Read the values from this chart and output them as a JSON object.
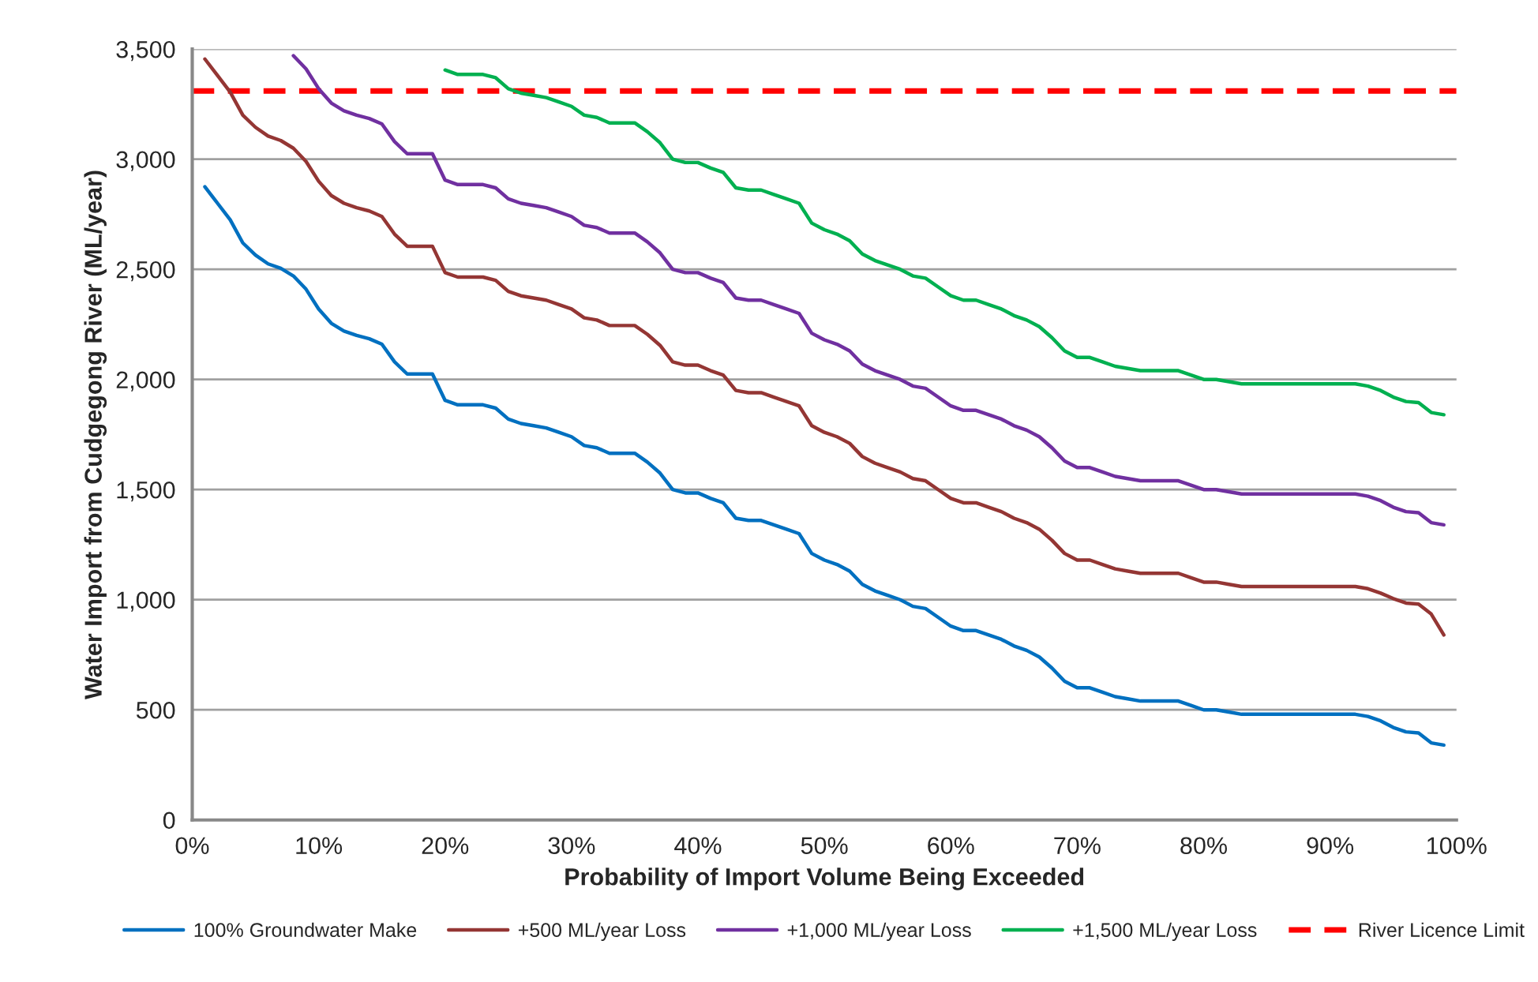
{
  "chart_data": {
    "type": "line",
    "xlabel": "Probability of Import Volume Being Exceeded",
    "ylabel": "Water Import from Cudgegong River (ML/year)",
    "x": [
      1,
      2,
      3,
      4,
      5,
      6,
      7,
      8,
      9,
      10,
      11,
      12,
      13,
      14,
      15,
      16,
      17,
      18,
      19,
      20,
      21,
      22,
      23,
      24,
      25,
      26,
      27,
      28,
      29,
      30,
      31,
      32,
      33,
      34,
      35,
      36,
      37,
      38,
      39,
      40,
      41,
      42,
      43,
      44,
      45,
      46,
      47,
      48,
      49,
      50,
      51,
      52,
      53,
      54,
      55,
      56,
      57,
      58,
      59,
      60,
      61,
      62,
      63,
      64,
      65,
      66,
      67,
      68,
      69,
      70,
      71,
      72,
      73,
      74,
      75,
      76,
      77,
      78,
      79,
      80,
      81,
      82,
      83,
      84,
      85,
      86,
      87,
      88,
      89,
      90,
      91,
      92,
      93,
      94,
      95,
      96,
      97,
      98,
      99
    ],
    "series": [
      {
        "name": "100% Groundwater Make",
        "color": "#0070c0",
        "values": [
          2875,
          2800,
          2725,
          2620,
          2565,
          2525,
          2505,
          2470,
          2410,
          2320,
          2255,
          2220,
          2200,
          2185,
          2160,
          2080,
          2025,
          2025,
          2025,
          1905,
          1885,
          1885,
          1885,
          1870,
          1820,
          1800,
          1790,
          1780,
          1760,
          1740,
          1700,
          1690,
          1665,
          1665,
          1665,
          1625,
          1575,
          1500,
          1485,
          1485,
          1460,
          1440,
          1370,
          1360,
          1360,
          1340,
          1320,
          1300,
          1210,
          1180,
          1160,
          1130,
          1070,
          1040,
          1020,
          1000,
          970,
          960,
          920,
          880,
          860,
          860,
          840,
          820,
          790,
          770,
          740,
          690,
          630,
          600,
          600,
          580,
          560,
          550,
          540,
          540,
          540,
          540,
          520,
          500,
          500,
          490,
          480,
          480,
          480,
          480,
          480,
          480,
          480,
          480,
          480,
          480,
          470,
          450,
          420,
          400,
          395,
          350,
          340
        ]
      },
      {
        "name": "+500 ML/year Loss",
        "color": "#943634",
        "values": [
          3455,
          3380,
          3305,
          3200,
          3145,
          3105,
          3085,
          3050,
          2990,
          2900,
          2835,
          2800,
          2780,
          2765,
          2740,
          2660,
          2605,
          2605,
          2605,
          2485,
          2465,
          2465,
          2465,
          2450,
          2400,
          2380,
          2370,
          2360,
          2340,
          2320,
          2280,
          2270,
          2245,
          2245,
          2245,
          2205,
          2155,
          2080,
          2065,
          2065,
          2040,
          2020,
          1950,
          1940,
          1940,
          1920,
          1900,
          1880,
          1790,
          1760,
          1740,
          1710,
          1650,
          1620,
          1600,
          1580,
          1550,
          1540,
          1500,
          1460,
          1440,
          1440,
          1420,
          1400,
          1370,
          1350,
          1320,
          1270,
          1210,
          1180,
          1180,
          1160,
          1140,
          1130,
          1120,
          1120,
          1120,
          1120,
          1100,
          1080,
          1080,
          1070,
          1060,
          1060,
          1060,
          1060,
          1060,
          1060,
          1060,
          1060,
          1060,
          1060,
          1050,
          1030,
          1005,
          985,
          980,
          935,
          840
        ]
      },
      {
        "name": "+1,000 ML/year Loss",
        "color": "#7030a0",
        "values": [
          null,
          null,
          null,
          null,
          null,
          null,
          null,
          3470,
          3410,
          3320,
          3255,
          3220,
          3200,
          3185,
          3160,
          3080,
          3025,
          3025,
          3025,
          2905,
          2885,
          2885,
          2885,
          2870,
          2820,
          2800,
          2790,
          2780,
          2760,
          2740,
          2700,
          2690,
          2665,
          2665,
          2665,
          2625,
          2575,
          2500,
          2485,
          2485,
          2460,
          2440,
          2370,
          2360,
          2360,
          2340,
          2320,
          2300,
          2210,
          2180,
          2160,
          2130,
          2070,
          2040,
          2020,
          2000,
          1970,
          1960,
          1920,
          1880,
          1860,
          1860,
          1840,
          1820,
          1790,
          1770,
          1740,
          1690,
          1630,
          1600,
          1600,
          1580,
          1560,
          1550,
          1540,
          1540,
          1540,
          1540,
          1520,
          1500,
          1500,
          1490,
          1480,
          1480,
          1480,
          1480,
          1480,
          1480,
          1480,
          1480,
          1480,
          1480,
          1470,
          1450,
          1420,
          1400,
          1395,
          1350,
          1340
        ]
      },
      {
        "name": "+1,500 ML/year Loss",
        "color": "#00b050",
        "values": [
          null,
          null,
          null,
          null,
          null,
          null,
          null,
          null,
          null,
          null,
          null,
          null,
          null,
          null,
          null,
          null,
          null,
          null,
          null,
          3405,
          3385,
          3385,
          3385,
          3370,
          3320,
          3300,
          3290,
          3280,
          3260,
          3240,
          3200,
          3190,
          3165,
          3165,
          3165,
          3125,
          3075,
          3000,
          2985,
          2985,
          2960,
          2940,
          2870,
          2860,
          2860,
          2840,
          2820,
          2800,
          2710,
          2680,
          2660,
          2630,
          2570,
          2540,
          2520,
          2500,
          2470,
          2460,
          2420,
          2380,
          2360,
          2360,
          2340,
          2320,
          2290,
          2270,
          2240,
          2190,
          2130,
          2100,
          2100,
          2080,
          2060,
          2050,
          2040,
          2040,
          2040,
          2040,
          2020,
          2000,
          2000,
          1990,
          1980,
          1980,
          1980,
          1980,
          1980,
          1980,
          1980,
          1980,
          1980,
          1980,
          1970,
          1950,
          1920,
          1900,
          1895,
          1850,
          1840
        ]
      }
    ],
    "ref_lines": [
      {
        "axis": "y",
        "value": 3310,
        "label": "River Licence Limit",
        "color": "#ff0000",
        "line_style": "dashed"
      }
    ],
    "xlim": [
      0,
      100
    ],
    "xticks": [
      {
        "value": 0,
        "label": "0%"
      },
      {
        "value": 10,
        "label": "10%"
      },
      {
        "value": 20,
        "label": "20%"
      },
      {
        "value": 30,
        "label": "30%"
      },
      {
        "value": 40,
        "label": "40%"
      },
      {
        "value": 50,
        "label": "50%"
      },
      {
        "value": 60,
        "label": "60%"
      },
      {
        "value": 70,
        "label": "70%"
      },
      {
        "value": 80,
        "label": "80%"
      },
      {
        "value": 90,
        "label": "90%"
      },
      {
        "value": 100,
        "label": "100%"
      }
    ],
    "ylim": [
      0,
      3500
    ],
    "yticks": [
      0,
      500,
      {
        "value": 1000,
        "label": "1,000"
      },
      {
        "value": 1500,
        "label": "1,500"
      },
      {
        "value": 2000,
        "label": "2,000"
      },
      {
        "value": 2500,
        "label": "2,500"
      },
      {
        "value": 3000,
        "label": "3,000"
      },
      {
        "value": 3500,
        "label": "3,500"
      }
    ],
    "grid": "y",
    "legend": "bottom",
    "line_style": "solid",
    "marker": "none"
  }
}
